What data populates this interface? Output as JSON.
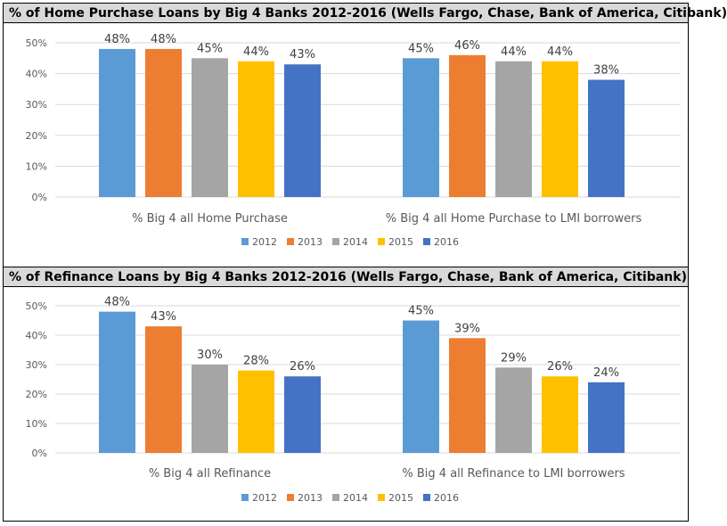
{
  "chart_data": [
    {
      "type": "bar",
      "title": "% of Home Purchase Loans by Big 4 Banks 2012-2016 (Wells Fargo, Chase, Bank of America, Citibank)",
      "categories": [
        "% Big 4 all Home Purchase",
        "% Big 4 all Home Purchase to LMI borrowers"
      ],
      "series": [
        {
          "name": "2012",
          "values": [
            48,
            45
          ],
          "labels": [
            "48%",
            "45%"
          ]
        },
        {
          "name": "2013",
          "values": [
            48,
            46
          ],
          "labels": [
            "48%",
            "46%"
          ]
        },
        {
          "name": "2014",
          "values": [
            45,
            44
          ],
          "labels": [
            "45%",
            "44%"
          ]
        },
        {
          "name": "2015",
          "values": [
            44,
            44
          ],
          "labels": [
            "44%",
            "44%"
          ]
        },
        {
          "name": "2016",
          "values": [
            43,
            38
          ],
          "labels": [
            "43%",
            "38%"
          ]
        }
      ],
      "ylim": [
        0,
        50
      ],
      "yticks": [
        "0%",
        "10%",
        "20%",
        "30%",
        "40%",
        "50%"
      ],
      "legend": "bottom",
      "grid": true
    },
    {
      "type": "bar",
      "title": "% of Refinance Loans by Big 4 Banks 2012-2016 (Wells Fargo, Chase, Bank of America, Citibank)",
      "categories": [
        "% Big 4 all Refinance",
        "% Big 4 all Refinance to LMI borrowers"
      ],
      "series": [
        {
          "name": "2012",
          "values": [
            48,
            45
          ],
          "labels": [
            "48%",
            "45%"
          ]
        },
        {
          "name": "2013",
          "values": [
            43,
            39
          ],
          "labels": [
            "43%",
            "39%"
          ]
        },
        {
          "name": "2014",
          "values": [
            30,
            29
          ],
          "labels": [
            "30%",
            "29%"
          ]
        },
        {
          "name": "2015",
          "values": [
            28,
            26
          ],
          "labels": [
            "28%",
            "26%"
          ]
        },
        {
          "name": "2016",
          "values": [
            26,
            24
          ],
          "labels": [
            "26%",
            "24%"
          ]
        }
      ],
      "ylim": [
        0,
        50
      ],
      "yticks": [
        "0%",
        "10%",
        "20%",
        "30%",
        "40%",
        "50%"
      ],
      "legend": "bottom",
      "grid": true
    }
  ],
  "colors": {
    "2012": "#5b9bd5",
    "2013": "#ed7d31",
    "2014": "#a5a5a5",
    "2015": "#ffc000",
    "2016": "#4472c4",
    "gridline": "#d9d9d9",
    "text": "#595959",
    "title_bg": "#d9d9d9"
  }
}
